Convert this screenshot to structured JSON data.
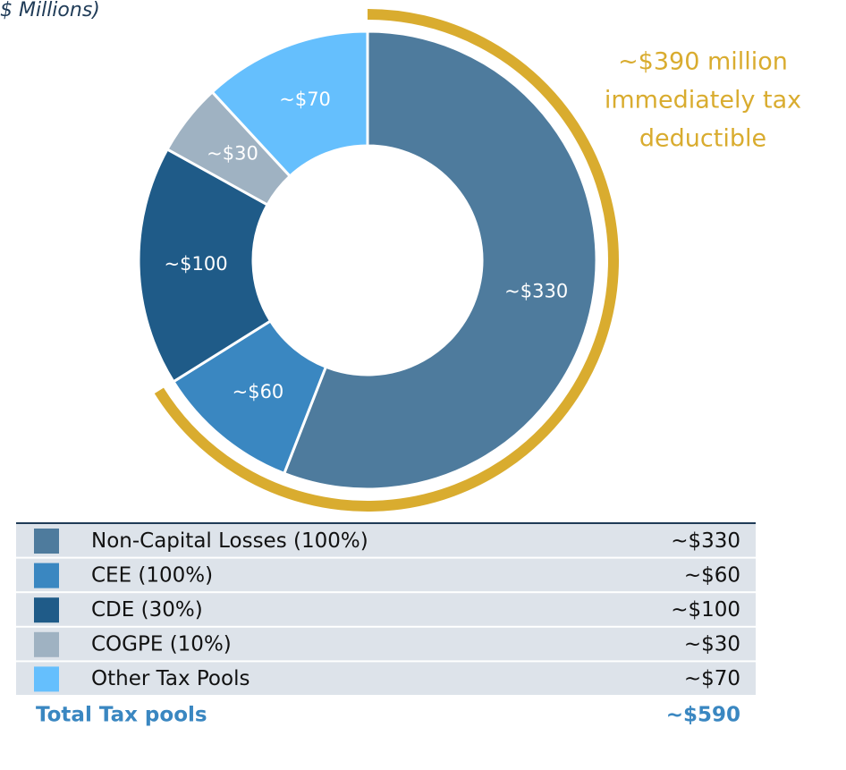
{
  "chart_data": {
    "type": "donut",
    "subtitle": "$ Millions)",
    "categories": [
      "Non-Capital Losses (100%)",
      "CEE (100%)",
      "CDE (30%)",
      "COGPE (10%)",
      "Other Tax Pools"
    ],
    "values": [
      330,
      60,
      100,
      30,
      70
    ],
    "value_labels": [
      "~$330",
      "~$60",
      "~$100",
      "~$30",
      "~$70"
    ],
    "colors": [
      "#4e7b9d",
      "#3a87c1",
      "#1f5b88",
      "#9fb2c2",
      "#65bffd"
    ],
    "annotation": {
      "text": [
        "~$390 million",
        "immediately tax",
        "deductible"
      ],
      "value": 390,
      "color": "#d9ac2f"
    },
    "total": {
      "label": "Total Tax pools",
      "value": 590,
      "value_label": "~$590",
      "color": "#3a87c1"
    }
  }
}
